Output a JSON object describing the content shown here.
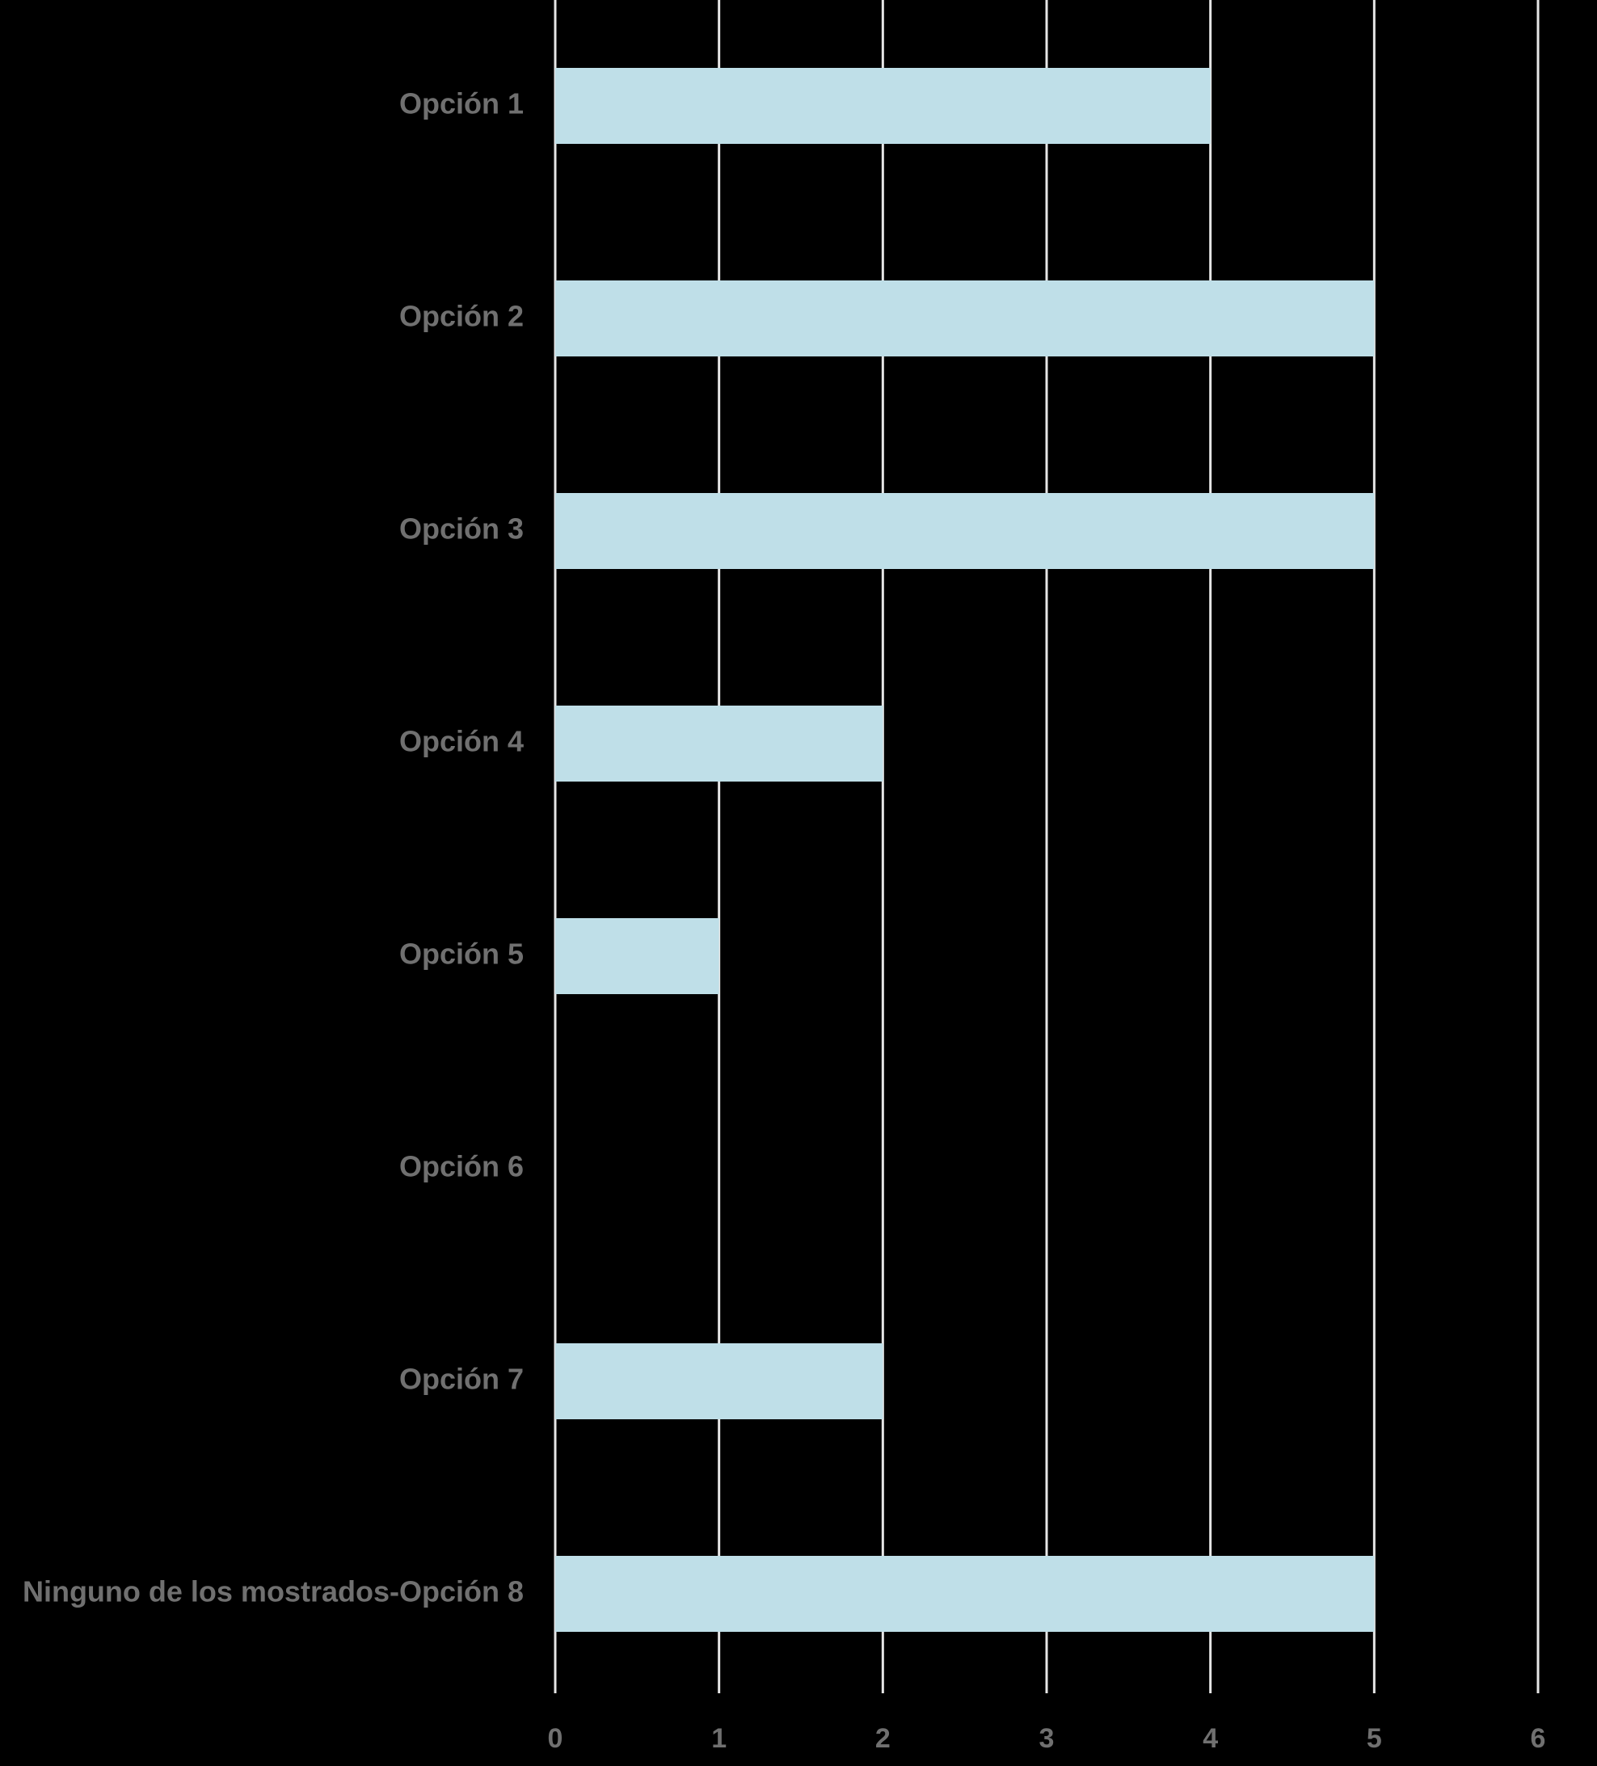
{
  "chart_data": {
    "type": "bar",
    "orientation": "horizontal",
    "categories": [
      "Opción 1",
      "Opción 2",
      "Opción 3",
      "Opción 4",
      "Opción 5",
      "Opción 6",
      "Opción 7",
      "Ninguno de los mostrados-Opción 8"
    ],
    "values": [
      4,
      5,
      5,
      2,
      1,
      0,
      2,
      5
    ],
    "title": "",
    "xlabel": "",
    "ylabel": "",
    "xlim": [
      0,
      6
    ],
    "xticks": [
      0,
      1,
      2,
      3,
      4,
      5,
      6
    ],
    "grid": "vertical",
    "legend": "none",
    "colors": {
      "background": "#000000",
      "bar": "#bfdfe8",
      "grid": "#e6e6e6",
      "label": "#707070"
    }
  }
}
